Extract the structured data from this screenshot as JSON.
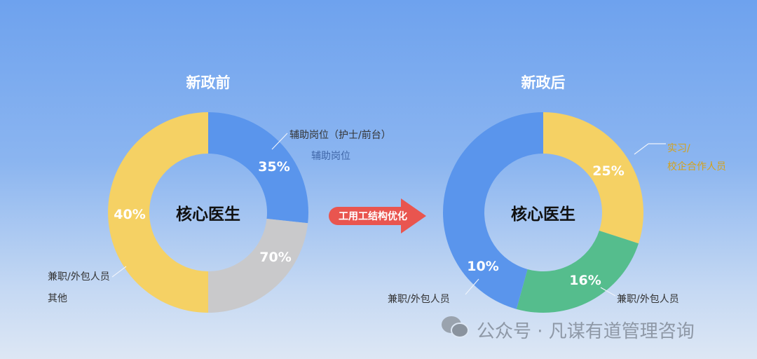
{
  "chart_data": [
    {
      "type": "pie",
      "title": "新政前",
      "center_label": "核心医生",
      "slices": [
        {
          "label": "35%",
          "share": 26.7,
          "color": "#5a95ec"
        },
        {
          "label": "70%",
          "share": 23.3,
          "color": "#c9c9cb"
        },
        {
          "label": "40%",
          "share": 50,
          "color": "#f5d164"
        }
      ],
      "annotations": [
        "辅助岗位（护士/前台）",
        "辅助岗位",
        "兼职/外包人员",
        "其他"
      ]
    },
    {
      "type": "pie",
      "title": "新政后",
      "center_label": "核心医生",
      "slices": [
        {
          "label": "25%",
          "share": 30,
          "color": "#f5d164"
        },
        {
          "label": "16%",
          "share": 24.3,
          "color": "#55bd8d"
        },
        {
          "label": "10%",
          "share": 45.7,
          "color": "#5a95ec"
        }
      ],
      "annotations": [
        "实习/",
        "校企合作人员",
        "兼职/外包人员",
        "兼职/外包人员"
      ]
    }
  ],
  "arrow": {
    "label": "工用工结构优化",
    "color": "#e9554f"
  },
  "watermark": "公众号 · 凡谋有道管理咨询"
}
